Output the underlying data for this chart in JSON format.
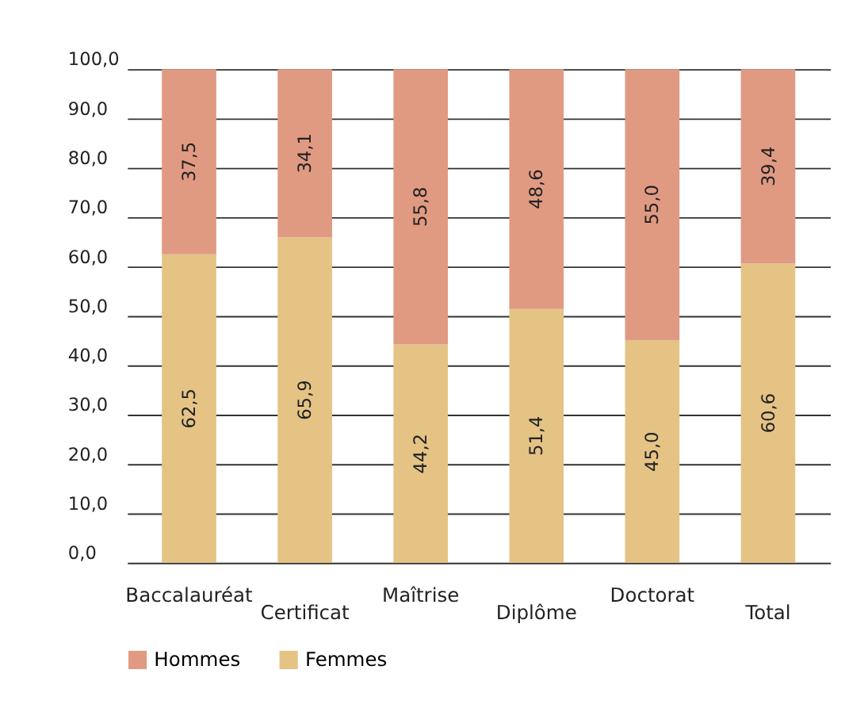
{
  "chart_data": {
    "type": "bar",
    "stacked": true,
    "categories": [
      "Baccalauréat",
      "Certificat",
      "Maîtrise",
      "Diplôme",
      "Doctorat",
      "Total"
    ],
    "series": [
      {
        "name": "Femmes",
        "color": "#e4c385",
        "values": [
          62.5,
          65.9,
          44.2,
          51.4,
          45.0,
          60.6
        ],
        "value_labels": [
          "62,5",
          "65,9",
          "44,2",
          "51,4",
          "45,0",
          "60,6"
        ]
      },
      {
        "name": "Hommes",
        "color": "#e09a82",
        "values": [
          37.5,
          34.1,
          55.8,
          48.6,
          55.0,
          39.4
        ],
        "value_labels": [
          "37,5",
          "34,1",
          "55,8",
          "48,6",
          "55,0",
          "39,4"
        ]
      }
    ],
    "ylim": [
      0,
      100
    ],
    "yticks": [
      {
        "value": 0,
        "label": "0,0"
      },
      {
        "value": 10,
        "label": "10,0"
      },
      {
        "value": 20,
        "label": "20,0"
      },
      {
        "value": 30,
        "label": "30,0"
      },
      {
        "value": 40,
        "label": "40,0"
      },
      {
        "value": 50,
        "label": "50,0"
      },
      {
        "value": 60,
        "label": "60,0"
      },
      {
        "value": 70,
        "label": "70,0"
      },
      {
        "value": 80,
        "label": "80,0"
      },
      {
        "value": 90,
        "label": "90,0"
      },
      {
        "value": 100,
        "label": "100,0"
      }
    ],
    "grid": "y",
    "legend": "bottom left"
  }
}
